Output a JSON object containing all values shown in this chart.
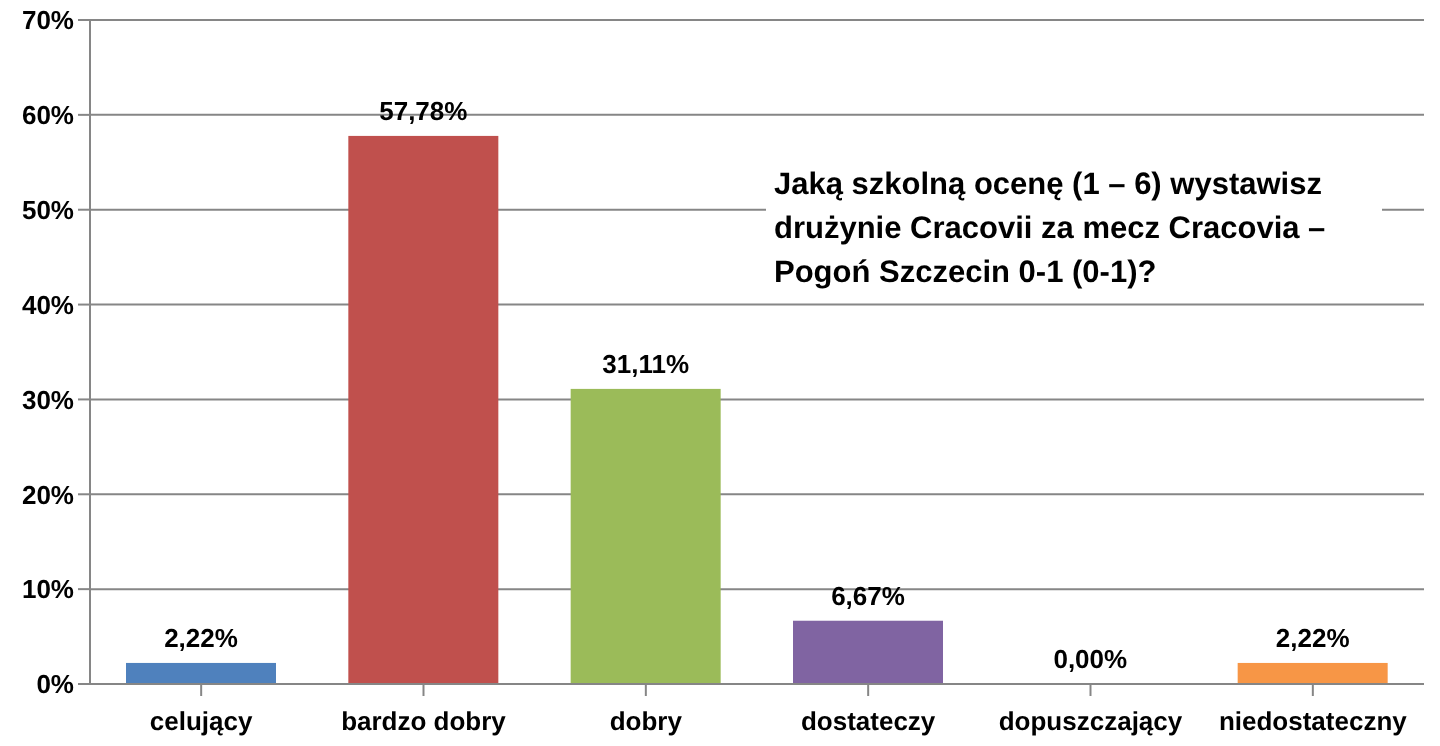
{
  "chart_data": {
    "type": "bar",
    "title": "Jaką szkolną ocenę (1 – 6) wystawisz drużynie Cracovii za mecz Cracovia – Pogoń Szczecin 0-1 (0-1)?",
    "categories": [
      "celujący",
      "bardzo dobry",
      "dobry",
      "dostateczy",
      "dopuszczający",
      "niedostateczny"
    ],
    "values": [
      2.22,
      57.78,
      31.11,
      6.67,
      0,
      2.22
    ],
    "value_labels": [
      "2,22%",
      "57,78%",
      "31,11%",
      "6,67%",
      "0,00%",
      "2,22%"
    ],
    "colors": [
      "#4f81bd",
      "#c0504d",
      "#9bbb59",
      "#8064a2",
      "#4bacc6",
      "#f79646"
    ],
    "ylim": [
      0,
      70
    ],
    "yticks": [
      {
        "value": 0,
        "label": "0%"
      },
      {
        "value": 10,
        "label": "10%"
      },
      {
        "value": 20,
        "label": "20%"
      },
      {
        "value": 30,
        "label": "30%"
      },
      {
        "value": 40,
        "label": "40%"
      },
      {
        "value": 50,
        "label": "50%"
      },
      {
        "value": 60,
        "label": "60%"
      },
      {
        "value": 70,
        "label": "70%"
      }
    ],
    "grid": "y"
  }
}
